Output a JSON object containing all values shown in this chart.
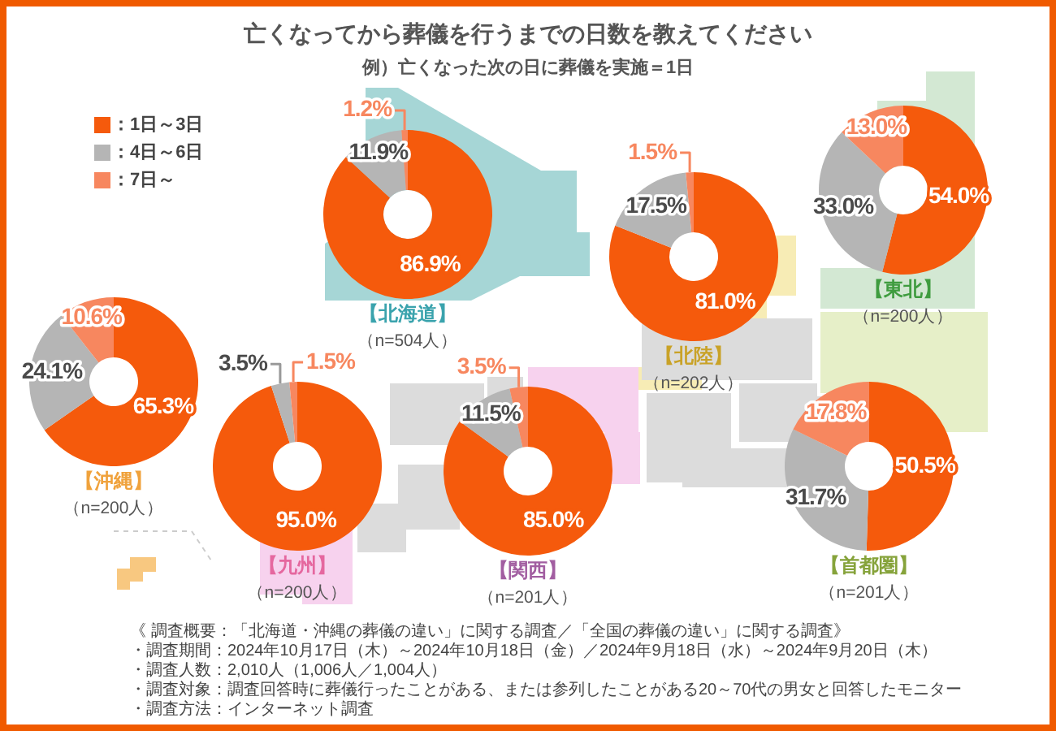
{
  "chart_data": [
    {
      "type": "other",
      "title": "亡くなってから葬儀を行うまでの日数を教えてください",
      "subtitle": "例）亡くなった次の日に葬儀を実施＝1日",
      "annotations": [
        "《 調査概要：「北海道・沖縄の葬儀の違い」に関する調査／「全国の葬儀の違い」に関する調査》",
        "・調査期間：2024年10月17日（木）～2024年10月18日（金）／2024年9月18日（水）～2024年9月20日（木）",
        "・調査人数：2,010人（1,006人／1,004人）",
        "・調査対象：調査回答時に葬儀行ったことがある、または参列したことがある20～70代の男女と回答したモニター",
        "・調査方法：インターネット調査"
      ]
    },
    {
      "type": "donut",
      "title": "【北海道】",
      "subtitle": "（n=504人）",
      "categories": [
        "：1日～3日",
        "：4日～6日",
        "：7日～"
      ],
      "values": [
        86.9,
        11.9,
        1.2
      ],
      "colors": [
        "#f55a0c",
        "#b5b5b5",
        "#f7875f"
      ],
      "value_labels": [
        "86.9%",
        "11.9%",
        "1.2%"
      ],
      "legend": "left"
    },
    {
      "type": "donut",
      "title": "【北陸】",
      "subtitle": "（n=202人）",
      "categories": [
        null,
        null,
        null
      ],
      "values": [
        81.0,
        17.5,
        1.5
      ],
      "colors": [
        "#f55a0c",
        "#b5b5b5",
        "#f7875f"
      ],
      "value_labels": [
        "81.0%",
        "17.5%",
        "1.5%"
      ]
    },
    {
      "type": "donut",
      "title": "【東北】",
      "subtitle": "（n=200人）",
      "categories": [
        null,
        null,
        null
      ],
      "values": [
        54.0,
        33.0,
        13.0
      ],
      "colors": [
        "#f55a0c",
        "#b5b5b5",
        "#f7875f"
      ],
      "value_labels": [
        "54.0%",
        "33.0%",
        "13.0%"
      ]
    },
    {
      "type": "donut",
      "title": "【沖縄】",
      "subtitle": "（n=200人）",
      "categories": [
        null,
        null,
        null
      ],
      "values": [
        65.3,
        24.1,
        10.6
      ],
      "colors": [
        "#f55a0c",
        "#b5b5b5",
        "#f7875f"
      ],
      "value_labels": [
        "65.3%",
        "24.1%",
        "10.6%"
      ]
    },
    {
      "type": "donut",
      "title": "【九州】",
      "subtitle": "（n=200人）",
      "categories": [
        null,
        null,
        null
      ],
      "values": [
        95.0,
        3.5,
        1.5
      ],
      "colors": [
        "#f55a0c",
        "#b5b5b5",
        "#f7875f"
      ],
      "value_labels": [
        "95.0%",
        "3.5%",
        "1.5%"
      ]
    },
    {
      "type": "donut",
      "title": "【関西】",
      "subtitle": "（n=201人）",
      "categories": [
        null,
        null,
        null
      ],
      "values": [
        85.0,
        11.5,
        3.5
      ],
      "colors": [
        "#f55a0c",
        "#b5b5b5",
        "#f7875f"
      ],
      "value_labels": [
        "85.0%",
        "11.5%",
        "3.5%"
      ]
    },
    {
      "type": "donut",
      "title": "【首都圏】",
      "subtitle": "（n=201人）",
      "categories": [
        null,
        null,
        null
      ],
      "values": [
        50.5,
        31.7,
        17.8
      ],
      "colors": [
        "#f55a0c",
        "#b5b5b5",
        "#f7875f"
      ],
      "value_labels": [
        "50.5%",
        "31.7%",
        "17.8%"
      ]
    }
  ]
}
